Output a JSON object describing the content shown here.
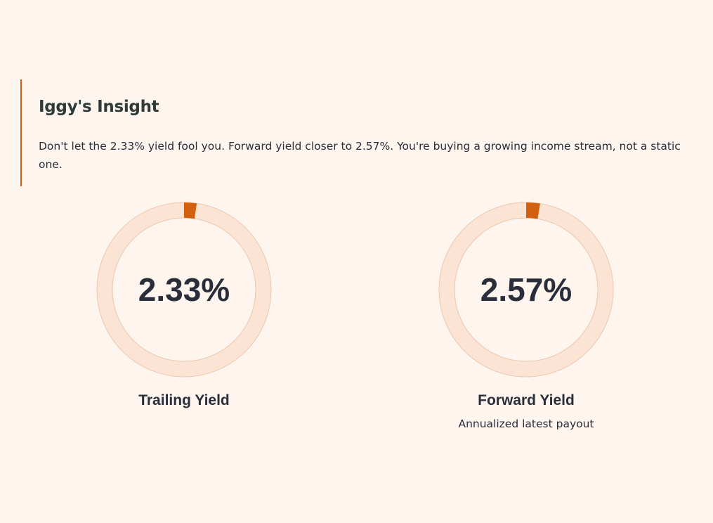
{
  "insight": {
    "title": "Iggy's Insight",
    "text": "Don't let the 2.33% yield fool you. Forward yield closer to 2.57%. You're buying a growing income stream, not a static one.",
    "accent_color": "#c9611a"
  },
  "gauges": [
    {
      "value_text": "2.33%",
      "value": 2.33,
      "label": "Trailing Yield",
      "sublabel": ""
    },
    {
      "value_text": "2.57%",
      "value": 2.57,
      "label": "Forward Yield",
      "sublabel": "Annualized latest payout"
    }
  ],
  "colors": {
    "background": "#fef6ee",
    "ring_track": "#fce4d4",
    "ring_track_border": "#ecc7b0",
    "ring_fill": "#d2600f",
    "text": "#2a2d3a"
  }
}
